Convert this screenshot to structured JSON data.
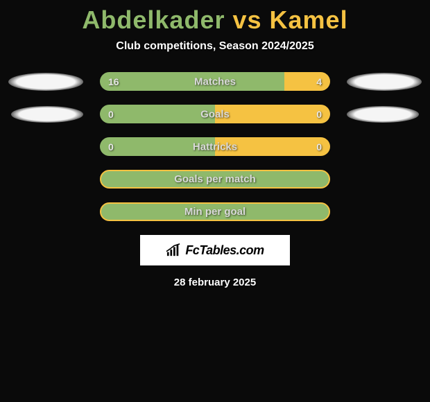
{
  "title": {
    "player1": "Abdelkader",
    "vs": " vs ",
    "player2": "Kamel",
    "player1_color": "#8fb96b",
    "player2_color": "#f5c242"
  },
  "subtitle": "Club competitions, Season 2024/2025",
  "label_text_color": "#d9d9d9",
  "value_text_color": "#e6e6e6",
  "left_color": "#8fb96b",
  "right_color": "#f5c242",
  "rows": [
    {
      "label": "Matches",
      "left_value": "16",
      "right_value": "4",
      "left_pct": 80,
      "right_pct": 20,
      "show_shadows": true
    },
    {
      "label": "Goals",
      "left_value": "0",
      "right_value": "0",
      "left_pct": 50,
      "right_pct": 50,
      "show_shadows": true,
      "small_shadow": true
    },
    {
      "label": "Hattricks",
      "left_value": "0",
      "right_value": "0",
      "left_pct": 50,
      "right_pct": 50,
      "show_shadows": false
    }
  ],
  "single_bars": [
    {
      "label": "Goals per match",
      "fill_color": "#8fb96b",
      "border_color": "#f5c242"
    },
    {
      "label": "Min per goal",
      "fill_color": "#8fb96b",
      "border_color": "#f5c242"
    }
  ],
  "watermark": {
    "icon_name": "chart-icon",
    "text": "FcTables.com"
  },
  "date": "28 february 2025",
  "background_color": "#0a0a0a",
  "shadow_color": "#f5f5f5"
}
